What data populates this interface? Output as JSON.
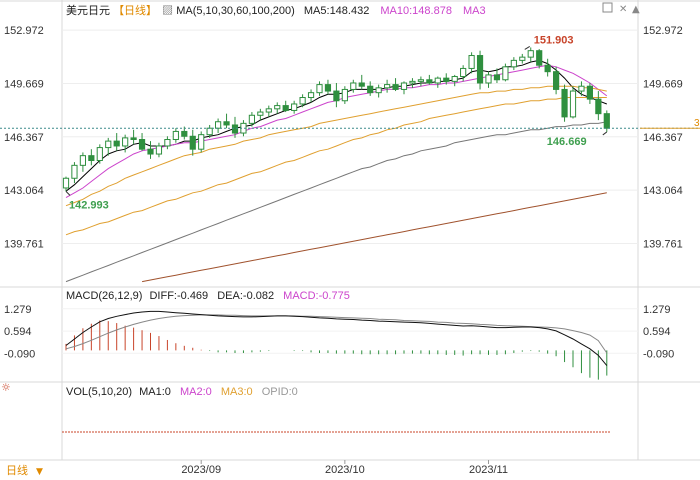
{
  "header": {
    "symbol": "美元日元",
    "period": "【日线】",
    "ma_label": "MA(5,10,30,60,100,200)",
    "ma5": "MA5:148.432",
    "ma10": "MA10:148.878",
    "ma30": "MA3"
  },
  "macd_header": {
    "label": "MACD(26,12,9)",
    "diff": "DIFF:-0.469",
    "dea": "DEA:-0.082",
    "macd": "MACD:-0.775"
  },
  "vol_header": {
    "label": "VOL(5,10,20)",
    "ma1": "MA1:0",
    "ma2": "MA2:0",
    "ma3": "MA3:0",
    "opid": "OPID:0"
  },
  "footer": {
    "period_button": "日线"
  },
  "colors": {
    "up": "#2f8f3f",
    "down": "#2f8f3f",
    "ma5": "#000000",
    "ma10": "#cc44cc",
    "ma30": "#e0a030",
    "ma100": "#777777",
    "ma200": "#a0522d",
    "macd_bar_pos": "#c8442a",
    "macd_bar_neg": "#2f8f3f",
    "high_label": "#c8442a",
    "low_label": "#3f9f4f",
    "price_line": "#3a8a8a"
  },
  "chart_data": [
    {
      "type": "line",
      "title": "美元日元 日线",
      "yticks": [
        152.972,
        149.669,
        146.367,
        143.064,
        139.761
      ],
      "ylim": [
        137.5,
        153.6
      ],
      "xticks": [
        "2023/09",
        "2023/10",
        "2023/11"
      ],
      "annotations": {
        "high": "151.903",
        "low_left": "142.993",
        "low_right": "146.669"
      },
      "current_price_marker": "3",
      "candles": [
        {
          "o": 143.2,
          "h": 143.9,
          "l": 142.99,
          "c": 143.8
        },
        {
          "o": 143.8,
          "h": 144.8,
          "l": 143.5,
          "c": 144.6
        },
        {
          "o": 144.6,
          "h": 145.4,
          "l": 144.2,
          "c": 145.2
        },
        {
          "o": 145.2,
          "h": 145.6,
          "l": 144.6,
          "c": 144.9
        },
        {
          "o": 144.9,
          "h": 145.9,
          "l": 144.7,
          "c": 145.7
        },
        {
          "o": 145.7,
          "h": 146.3,
          "l": 145.2,
          "c": 146.1
        },
        {
          "o": 146.1,
          "h": 146.6,
          "l": 145.5,
          "c": 145.8
        },
        {
          "o": 145.8,
          "h": 146.5,
          "l": 145.4,
          "c": 146.3
        },
        {
          "o": 146.3,
          "h": 146.8,
          "l": 145.9,
          "c": 146.2
        },
        {
          "o": 146.2,
          "h": 146.6,
          "l": 145.5,
          "c": 145.6
        },
        {
          "o": 145.6,
          "h": 146.1,
          "l": 145.0,
          "c": 145.3
        },
        {
          "o": 145.3,
          "h": 146.0,
          "l": 145.1,
          "c": 145.8
        },
        {
          "o": 145.8,
          "h": 146.4,
          "l": 145.6,
          "c": 146.2
        },
        {
          "o": 146.2,
          "h": 146.9,
          "l": 146.0,
          "c": 146.7
        },
        {
          "o": 146.7,
          "h": 147.0,
          "l": 146.2,
          "c": 146.4
        },
        {
          "o": 146.4,
          "h": 146.8,
          "l": 145.2,
          "c": 145.6
        },
        {
          "o": 145.6,
          "h": 146.7,
          "l": 145.4,
          "c": 146.5
        },
        {
          "o": 146.5,
          "h": 147.1,
          "l": 146.3,
          "c": 146.9
        },
        {
          "o": 146.9,
          "h": 147.5,
          "l": 146.6,
          "c": 147.3
        },
        {
          "o": 147.3,
          "h": 147.8,
          "l": 146.9,
          "c": 147.1
        },
        {
          "o": 147.1,
          "h": 147.6,
          "l": 146.3,
          "c": 146.6
        },
        {
          "o": 146.6,
          "h": 147.4,
          "l": 146.4,
          "c": 147.2
        },
        {
          "o": 147.2,
          "h": 147.9,
          "l": 147.0,
          "c": 147.7
        },
        {
          "o": 147.7,
          "h": 148.1,
          "l": 147.4,
          "c": 147.9
        },
        {
          "o": 147.9,
          "h": 148.3,
          "l": 147.6,
          "c": 148.1
        },
        {
          "o": 148.1,
          "h": 148.5,
          "l": 147.8,
          "c": 148.3
        },
        {
          "o": 148.3,
          "h": 148.6,
          "l": 147.9,
          "c": 148.0
        },
        {
          "o": 148.0,
          "h": 148.6,
          "l": 147.8,
          "c": 148.4
        },
        {
          "o": 148.4,
          "h": 149.0,
          "l": 148.2,
          "c": 148.8
        },
        {
          "o": 148.8,
          "h": 149.3,
          "l": 148.5,
          "c": 149.1
        },
        {
          "o": 149.1,
          "h": 149.8,
          "l": 148.9,
          "c": 149.6
        },
        {
          "o": 149.6,
          "h": 149.9,
          "l": 149.0,
          "c": 149.2
        },
        {
          "o": 149.2,
          "h": 149.7,
          "l": 148.2,
          "c": 148.6
        },
        {
          "o": 148.6,
          "h": 149.5,
          "l": 148.4,
          "c": 149.3
        },
        {
          "o": 149.3,
          "h": 149.9,
          "l": 149.1,
          "c": 149.7
        },
        {
          "o": 149.7,
          "h": 150.2,
          "l": 149.3,
          "c": 149.5
        },
        {
          "o": 149.5,
          "h": 149.8,
          "l": 148.9,
          "c": 149.1
        },
        {
          "o": 149.1,
          "h": 149.6,
          "l": 148.8,
          "c": 149.4
        },
        {
          "o": 149.4,
          "h": 149.9,
          "l": 149.1,
          "c": 149.6
        },
        {
          "o": 149.6,
          "h": 150.0,
          "l": 149.2,
          "c": 149.3
        },
        {
          "o": 149.3,
          "h": 149.8,
          "l": 149.0,
          "c": 149.7
        },
        {
          "o": 149.7,
          "h": 150.0,
          "l": 149.4,
          "c": 149.8
        },
        {
          "o": 149.8,
          "h": 150.1,
          "l": 149.5,
          "c": 149.9
        },
        {
          "o": 149.9,
          "h": 150.2,
          "l": 149.6,
          "c": 149.7
        },
        {
          "o": 149.7,
          "h": 150.1,
          "l": 149.4,
          "c": 150.0
        },
        {
          "o": 150.0,
          "h": 150.3,
          "l": 149.6,
          "c": 149.8
        },
        {
          "o": 149.8,
          "h": 150.2,
          "l": 149.5,
          "c": 150.1
        },
        {
          "o": 150.1,
          "h": 150.8,
          "l": 149.8,
          "c": 150.6
        },
        {
          "o": 150.6,
          "h": 151.6,
          "l": 150.3,
          "c": 151.4
        },
        {
          "o": 151.4,
          "h": 151.7,
          "l": 149.3,
          "c": 149.7
        },
        {
          "o": 149.7,
          "h": 150.4,
          "l": 149.4,
          "c": 150.2
        },
        {
          "o": 150.2,
          "h": 150.6,
          "l": 149.7,
          "c": 149.9
        },
        {
          "o": 149.9,
          "h": 150.9,
          "l": 149.8,
          "c": 150.7
        },
        {
          "o": 150.7,
          "h": 151.3,
          "l": 150.5,
          "c": 151.1
        },
        {
          "o": 151.1,
          "h": 151.5,
          "l": 150.9,
          "c": 151.3
        },
        {
          "o": 151.3,
          "h": 151.9,
          "l": 151.0,
          "c": 151.7
        },
        {
          "o": 151.7,
          "h": 151.8,
          "l": 150.6,
          "c": 150.8
        },
        {
          "o": 150.8,
          "h": 151.2,
          "l": 150.1,
          "c": 150.4
        },
        {
          "o": 150.4,
          "h": 150.7,
          "l": 149.0,
          "c": 149.3
        },
        {
          "o": 149.3,
          "h": 149.6,
          "l": 147.3,
          "c": 147.6
        },
        {
          "o": 147.6,
          "h": 149.5,
          "l": 147.5,
          "c": 149.2
        },
        {
          "o": 149.2,
          "h": 149.8,
          "l": 148.9,
          "c": 149.5
        },
        {
          "o": 149.5,
          "h": 149.7,
          "l": 148.4,
          "c": 148.7
        },
        {
          "o": 148.7,
          "h": 149.2,
          "l": 147.4,
          "c": 147.8
        },
        {
          "o": 147.8,
          "h": 148.0,
          "l": 146.67,
          "c": 146.9
        }
      ],
      "series": [
        {
          "id": "ma5",
          "values": [
            143.0,
            143.4,
            143.9,
            144.4,
            144.9,
            145.3,
            145.5,
            145.6,
            145.9,
            146.0,
            145.8,
            145.8,
            145.8,
            145.9,
            146.1,
            146.1,
            146.3,
            146.4,
            146.5,
            146.7,
            146.9,
            147.0,
            147.1,
            147.4,
            147.6,
            147.8,
            148.0,
            148.1,
            148.3,
            148.5,
            148.8,
            149.0,
            149.0,
            149.1,
            149.3,
            149.3,
            149.3,
            149.3,
            149.4,
            149.5,
            149.5,
            149.6,
            149.7,
            149.7,
            149.8,
            149.8,
            149.9,
            150.0,
            150.4,
            150.5,
            150.4,
            150.5,
            150.7,
            150.7,
            150.8,
            151.0,
            151.1,
            150.9,
            150.5,
            150.0,
            149.4,
            149.0,
            148.8,
            148.6,
            148.4
          ]
        },
        {
          "id": "ma10",
          "values": [
            142.6,
            142.9,
            143.2,
            143.6,
            144.0,
            144.4,
            144.7,
            145.0,
            145.3,
            145.5,
            145.6,
            145.7,
            145.8,
            145.9,
            146.0,
            146.0,
            146.1,
            146.2,
            146.3,
            146.4,
            146.5,
            146.7,
            146.9,
            147.0,
            147.2,
            147.4,
            147.5,
            147.7,
            147.9,
            148.1,
            148.3,
            148.5,
            148.6,
            148.8,
            148.9,
            149.0,
            149.1,
            149.2,
            149.3,
            149.3,
            149.4,
            149.4,
            149.5,
            149.6,
            149.6,
            149.7,
            149.7,
            149.8,
            149.9,
            150.0,
            150.1,
            150.2,
            150.3,
            150.4,
            150.5,
            150.6,
            150.7,
            150.8,
            150.7,
            150.5,
            150.3,
            150.0,
            149.7,
            149.3,
            148.9
          ]
        },
        {
          "id": "ma30",
          "values": [
            142.1,
            142.3,
            142.5,
            142.8,
            143.0,
            143.3,
            143.5,
            143.8,
            144.0,
            144.2,
            144.4,
            144.6,
            144.8,
            145.0,
            145.2,
            145.3,
            145.4,
            145.6,
            145.7,
            145.8,
            145.9,
            146.1,
            146.2,
            146.3,
            146.5,
            146.6,
            146.7,
            146.8,
            146.9,
            147.0,
            147.2,
            147.3,
            147.4,
            147.5,
            147.6,
            147.7,
            147.8,
            147.9,
            148.0,
            148.1,
            148.2,
            148.3,
            148.4,
            148.5,
            148.6,
            148.7,
            148.8,
            148.9,
            149.0,
            149.1,
            149.1,
            149.2,
            149.2,
            149.3,
            149.3,
            149.4,
            149.4,
            149.5,
            149.5,
            149.5,
            149.5,
            149.4,
            149.4,
            149.3,
            149.2
          ]
        },
        {
          "id": "ma60",
          "values": [
            140.3,
            140.5,
            140.6,
            140.8,
            141.0,
            141.1,
            141.3,
            141.5,
            141.7,
            141.8,
            142.0,
            142.2,
            142.4,
            142.5,
            142.7,
            142.9,
            143.0,
            143.2,
            143.4,
            143.5,
            143.7,
            143.9,
            144.1,
            144.2,
            144.4,
            144.6,
            144.8,
            144.9,
            145.1,
            145.3,
            145.5,
            145.6,
            145.8,
            146.0,
            146.2,
            146.3,
            146.5,
            146.6,
            146.8,
            146.9,
            147.1,
            147.2,
            147.3,
            147.5,
            147.6,
            147.7,
            147.8,
            147.9,
            148.0,
            148.1,
            148.2,
            148.3,
            148.4,
            148.4,
            148.5,
            148.6,
            148.6,
            148.7,
            148.7,
            148.8,
            148.8,
            148.8,
            148.8,
            148.8,
            148.8
          ]
        },
        {
          "id": "ma100",
          "values": [
            137.4,
            137.6,
            137.8,
            138.0,
            138.2,
            138.4,
            138.6,
            138.8,
            139.0,
            139.2,
            139.4,
            139.6,
            139.8,
            140.0,
            140.2,
            140.4,
            140.6,
            140.8,
            141.0,
            141.2,
            141.4,
            141.6,
            141.8,
            142.0,
            142.2,
            142.4,
            142.6,
            142.8,
            143.0,
            143.2,
            143.4,
            143.6,
            143.8,
            144.0,
            144.2,
            144.4,
            144.5,
            144.7,
            144.9,
            145.0,
            145.2,
            145.3,
            145.5,
            145.6,
            145.7,
            145.8,
            146.0,
            146.1,
            146.2,
            146.3,
            146.4,
            146.5,
            146.5,
            146.6,
            146.7,
            146.8,
            146.8,
            146.9,
            147.0,
            147.0,
            147.1,
            147.1,
            147.2,
            147.2,
            147.3
          ]
        },
        {
          "id": "ma200",
          "values": [
            null,
            null,
            null,
            null,
            null,
            null,
            null,
            null,
            null,
            137.4,
            137.5,
            137.6,
            137.7,
            137.8,
            137.9,
            138.0,
            138.1,
            138.2,
            138.3,
            138.4,
            138.5,
            138.6,
            138.7,
            138.8,
            138.9,
            139.0,
            139.1,
            139.2,
            139.3,
            139.4,
            139.5,
            139.6,
            139.7,
            139.8,
            139.9,
            140.0,
            140.1,
            140.2,
            140.3,
            140.4,
            140.5,
            140.6,
            140.7,
            140.8,
            140.9,
            141.0,
            141.1,
            141.2,
            141.3,
            141.4,
            141.5,
            141.6,
            141.7,
            141.8,
            141.9,
            142.0,
            142.1,
            142.2,
            142.3,
            142.4,
            142.5,
            142.6,
            142.7,
            142.8,
            142.9
          ]
        }
      ]
    },
    {
      "type": "bar",
      "title": "MACD(26,12,9)",
      "yticks": [
        1.279,
        0.594,
        -0.09
      ],
      "ytick_labels": [
        "1.279",
        "0.594",
        "-0.090"
      ],
      "ylim": [
        -0.85,
        1.55
      ],
      "diff": [
        0.15,
        0.35,
        0.55,
        0.72,
        0.88,
        0.98,
        1.05,
        1.1,
        1.15,
        1.18,
        1.2,
        1.2,
        1.18,
        1.16,
        1.14,
        1.12,
        1.1,
        1.08,
        1.06,
        1.05,
        1.04,
        1.03,
        1.03,
        1.04,
        1.05,
        1.06,
        1.06,
        1.05,
        1.04,
        1.02,
        1.0,
        0.99,
        0.97,
        0.96,
        0.95,
        0.93,
        0.92,
        0.9,
        0.89,
        0.88,
        0.87,
        0.86,
        0.85,
        0.83,
        0.81,
        0.79,
        0.77,
        0.75,
        0.76,
        0.74,
        0.72,
        0.7,
        0.7,
        0.71,
        0.72,
        0.72,
        0.7,
        0.66,
        0.6,
        0.48,
        0.35,
        0.2,
        0.05,
        -0.15,
        -0.469
      ],
      "dea": [
        0.05,
        0.12,
        0.21,
        0.31,
        0.42,
        0.53,
        0.63,
        0.72,
        0.8,
        0.87,
        0.93,
        0.98,
        1.02,
        1.05,
        1.07,
        1.08,
        1.09,
        1.09,
        1.09,
        1.08,
        1.08,
        1.07,
        1.06,
        1.06,
        1.06,
        1.06,
        1.06,
        1.06,
        1.05,
        1.05,
        1.04,
        1.03,
        1.02,
        1.01,
        1.0,
        0.99,
        0.98,
        0.96,
        0.95,
        0.94,
        0.92,
        0.91,
        0.9,
        0.89,
        0.87,
        0.86,
        0.84,
        0.83,
        0.82,
        0.8,
        0.79,
        0.77,
        0.76,
        0.75,
        0.74,
        0.73,
        0.72,
        0.71,
        0.69,
        0.66,
        0.61,
        0.55,
        0.47,
        0.3,
        -0.082
      ],
      "macd": [
        0.2,
        0.46,
        0.68,
        0.82,
        0.92,
        0.9,
        0.84,
        0.76,
        0.7,
        0.62,
        0.54,
        0.44,
        0.32,
        0.22,
        0.14,
        0.08,
        0.02,
        -0.02,
        -0.06,
        -0.06,
        -0.08,
        -0.08,
        -0.06,
        -0.04,
        -0.02,
        0.0,
        0.0,
        -0.02,
        -0.02,
        -0.06,
        -0.08,
        -0.08,
        -0.1,
        -0.1,
        -0.1,
        -0.12,
        -0.12,
        -0.12,
        -0.12,
        -0.12,
        -0.1,
        -0.1,
        -0.1,
        -0.12,
        -0.12,
        -0.14,
        -0.14,
        -0.16,
        -0.12,
        -0.12,
        -0.14,
        -0.14,
        -0.12,
        -0.08,
        -0.04,
        -0.02,
        -0.04,
        -0.1,
        -0.18,
        -0.36,
        -0.52,
        -0.7,
        -0.84,
        -0.9,
        -0.775
      ]
    },
    {
      "type": "bar",
      "title": "VOL(5,10,20)",
      "values": []
    }
  ]
}
